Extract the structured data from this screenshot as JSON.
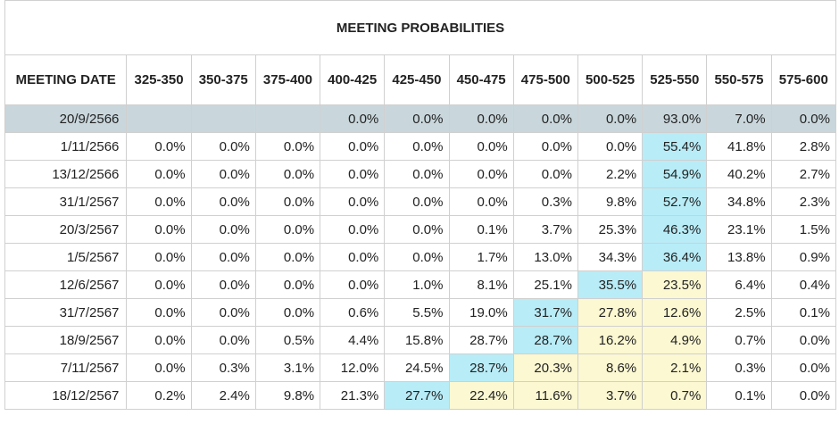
{
  "chart_data": {
    "type": "table",
    "title": "MEETING PROBABILITIES",
    "first_column_header": "MEETING DATE",
    "columns": [
      "325-350",
      "350-375",
      "375-400",
      "400-425",
      "425-450",
      "450-475",
      "475-500",
      "500-525",
      "525-550",
      "550-575",
      "575-600"
    ],
    "rows": [
      {
        "date": "20/9/2566",
        "values": [
          "",
          "",
          "",
          "0.0%",
          "0.0%",
          "0.0%",
          "0.0%",
          "0.0%",
          "93.0%",
          "7.0%",
          "0.0%"
        ],
        "current": true,
        "blue": [],
        "yellow": []
      },
      {
        "date": "1/11/2566",
        "values": [
          "0.0%",
          "0.0%",
          "0.0%",
          "0.0%",
          "0.0%",
          "0.0%",
          "0.0%",
          "0.0%",
          "55.4%",
          "41.8%",
          "2.8%"
        ],
        "blue": [
          8
        ],
        "yellow": []
      },
      {
        "date": "13/12/2566",
        "values": [
          "0.0%",
          "0.0%",
          "0.0%",
          "0.0%",
          "0.0%",
          "0.0%",
          "0.0%",
          "2.2%",
          "54.9%",
          "40.2%",
          "2.7%"
        ],
        "blue": [
          8
        ],
        "yellow": []
      },
      {
        "date": "31/1/2567",
        "values": [
          "0.0%",
          "0.0%",
          "0.0%",
          "0.0%",
          "0.0%",
          "0.0%",
          "0.3%",
          "9.8%",
          "52.7%",
          "34.8%",
          "2.3%"
        ],
        "blue": [
          8
        ],
        "yellow": []
      },
      {
        "date": "20/3/2567",
        "values": [
          "0.0%",
          "0.0%",
          "0.0%",
          "0.0%",
          "0.0%",
          "0.1%",
          "3.7%",
          "25.3%",
          "46.3%",
          "23.1%",
          "1.5%"
        ],
        "blue": [
          8
        ],
        "yellow": []
      },
      {
        "date": "1/5/2567",
        "values": [
          "0.0%",
          "0.0%",
          "0.0%",
          "0.0%",
          "0.0%",
          "1.7%",
          "13.0%",
          "34.3%",
          "36.4%",
          "13.8%",
          "0.9%"
        ],
        "blue": [
          8
        ],
        "yellow": []
      },
      {
        "date": "12/6/2567",
        "values": [
          "0.0%",
          "0.0%",
          "0.0%",
          "0.0%",
          "1.0%",
          "8.1%",
          "25.1%",
          "35.5%",
          "23.5%",
          "6.4%",
          "0.4%"
        ],
        "blue": [
          7
        ],
        "yellow": [
          8
        ]
      },
      {
        "date": "31/7/2567",
        "values": [
          "0.0%",
          "0.0%",
          "0.0%",
          "0.6%",
          "5.5%",
          "19.0%",
          "31.7%",
          "27.8%",
          "12.6%",
          "2.5%",
          "0.1%"
        ],
        "blue": [
          6
        ],
        "yellow": [
          7,
          8
        ]
      },
      {
        "date": "18/9/2567",
        "values": [
          "0.0%",
          "0.0%",
          "0.5%",
          "4.4%",
          "15.8%",
          "28.7%",
          "28.7%",
          "16.2%",
          "4.9%",
          "0.7%",
          "0.0%"
        ],
        "blue": [
          6
        ],
        "yellow": [
          7,
          8
        ]
      },
      {
        "date": "7/11/2567",
        "values": [
          "0.0%",
          "0.3%",
          "3.1%",
          "12.0%",
          "24.5%",
          "28.7%",
          "20.3%",
          "8.6%",
          "2.1%",
          "0.3%",
          "0.0%"
        ],
        "blue": [
          5
        ],
        "yellow": [
          6,
          7,
          8
        ]
      },
      {
        "date": "18/12/2567",
        "values": [
          "0.2%",
          "2.4%",
          "9.8%",
          "21.3%",
          "27.7%",
          "22.4%",
          "11.6%",
          "3.7%",
          "0.7%",
          "0.1%",
          "0.0%"
        ],
        "blue": [
          4
        ],
        "yellow": [
          5,
          6,
          7,
          8
        ]
      }
    ],
    "colors": {
      "current_row": "#c9d7dc",
      "highlight_blue": "#b8ecf7",
      "highlight_yellow": "#fbf8d2",
      "border": "#d0d0d0"
    }
  }
}
